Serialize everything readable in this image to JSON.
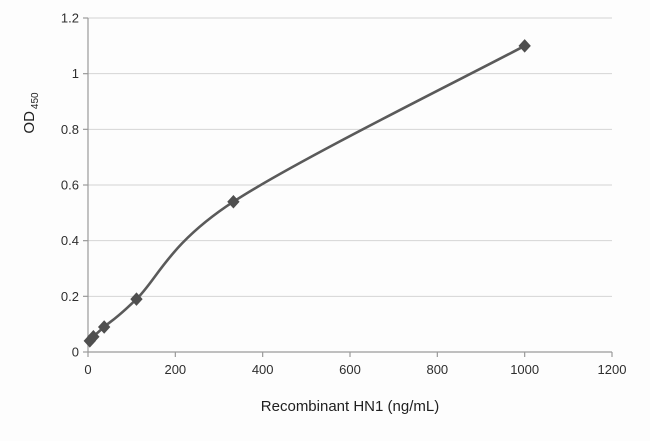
{
  "chart_data": {
    "type": "line",
    "title": "",
    "xlabel": "Recombinant HN1 (ng/mL)",
    "ylabel": "OD",
    "ylabel_sub": "450",
    "x": [
      4.1,
      12.3,
      37,
      111,
      333,
      1000
    ],
    "y": [
      0.04,
      0.055,
      0.09,
      0.19,
      0.54,
      1.1
    ],
    "xlim": [
      0,
      1200
    ],
    "ylim": [
      0,
      1.2
    ],
    "x_ticks": [
      0,
      200,
      400,
      600,
      800,
      1000,
      1200
    ],
    "y_ticks": [
      0,
      0.2,
      0.4,
      0.6,
      0.8,
      1,
      1.2
    ],
    "grid": "horizontal",
    "legend": "none",
    "marker": "diamond",
    "colors": {
      "line": "#5a5a5a",
      "marker": "#4f4f4f",
      "grid": "#d4d4d4",
      "axis": "#9a9a9a",
      "text": "#2e2e2e"
    }
  }
}
